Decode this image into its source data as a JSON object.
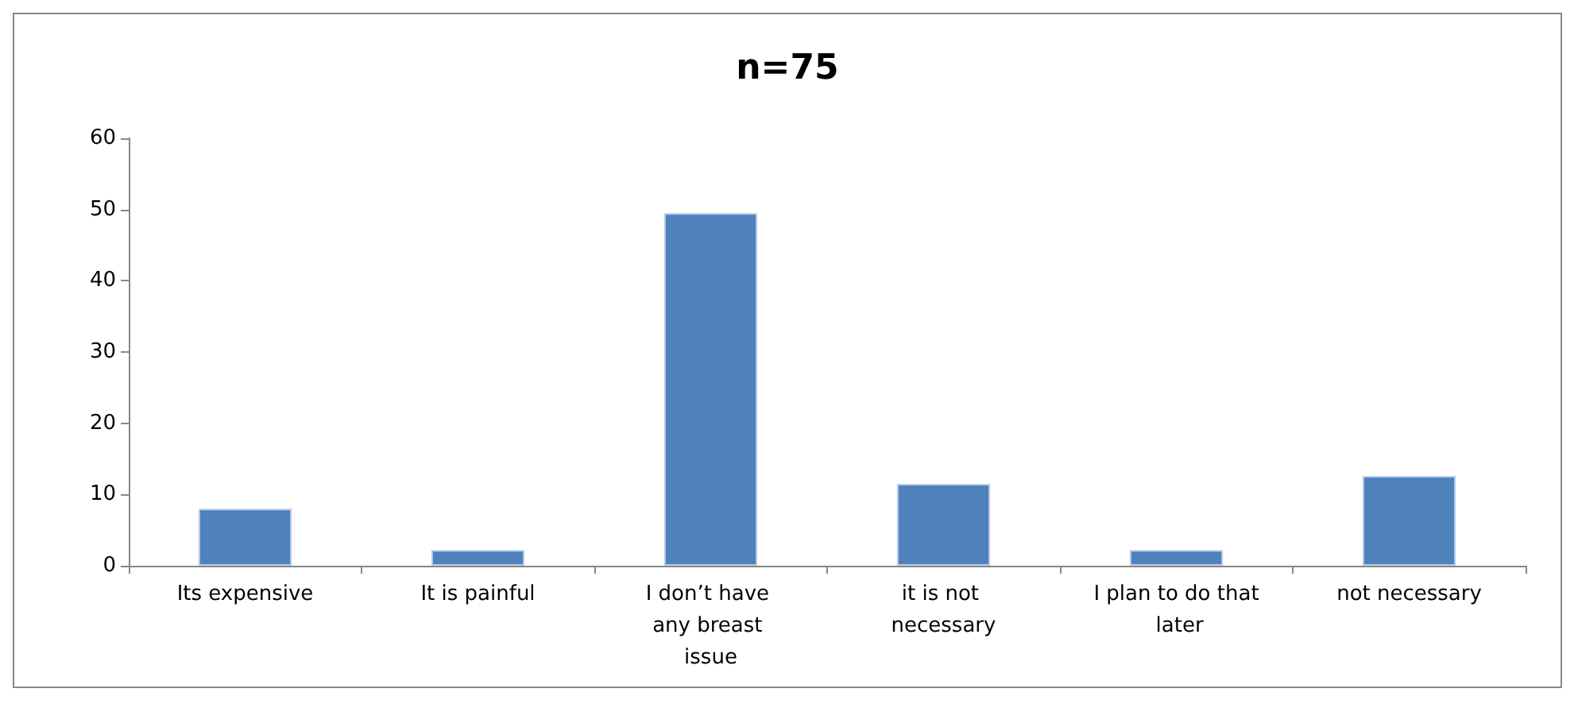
{
  "chart_data": {
    "type": "bar",
    "title": "n=75",
    "categories": [
      "Its expensive",
      "It is painful",
      "I don’t have any breast issue",
      "it is not necessary",
      "I plan to do that later",
      "not necessary"
    ],
    "values": [
      8,
      2.2,
      49.5,
      11.5,
      2.2,
      12.6
    ],
    "color": "#4f81bd",
    "ylim": [
      0,
      60
    ],
    "yticks": [
      0,
      10,
      20,
      30,
      40,
      50,
      60
    ],
    "grid": false
  }
}
